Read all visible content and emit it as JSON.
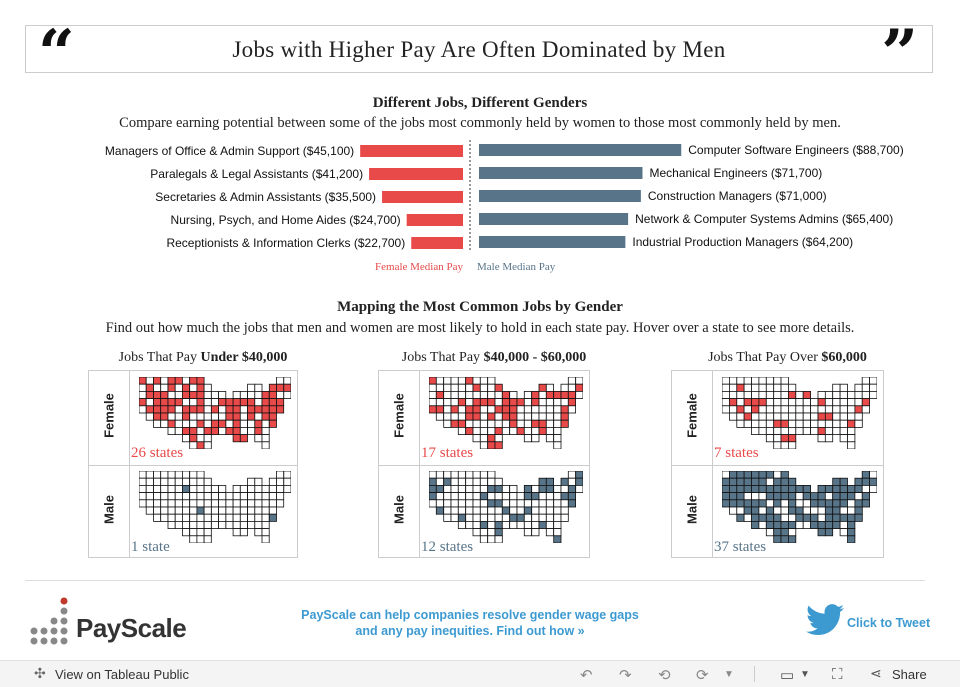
{
  "title": "Jobs with Higher Pay Are Often Dominated by Men",
  "section1": {
    "title": "Different Jobs, Different Genders",
    "subtitle": "Compare earning potential between some of the jobs most commonly held by women to those most commonly held by men."
  },
  "section2": {
    "title": "Mapping the Most Common Jobs by Gender",
    "subtitle": "Find out how much the jobs that men and women are most likely to hold in each state pay. Hover over a state to see more details."
  },
  "colors": {
    "female": "#e84a4a",
    "male": "#587489",
    "link": "#3d9ad1"
  },
  "chart_data": [
    {
      "type": "bar",
      "orientation": "horizontal",
      "title": "Different Jobs, Different Genders",
      "legend": [
        "Female Median Pay",
        "Male Median Pay"
      ],
      "series": [
        {
          "name": "Female Median Pay",
          "categories": [
            "Managers of Office & Admin Support",
            "Paralegals & Legal Assistants",
            "Secretaries & Admin Assistants",
            "Nursing, Psych, and Home Aides",
            "Receptionists & Information Clerks"
          ],
          "labels": [
            "Managers of Office & Admin Support ($45,100)",
            "Paralegals & Legal Assistants ($41,200)",
            "Secretaries & Admin Assistants ($35,500)",
            "Nursing, Psych, and Home Aides ($24,700)",
            "Receptionists & Information Clerks ($22,700)"
          ],
          "values": [
            45100,
            41200,
            35500,
            24700,
            22700
          ]
        },
        {
          "name": "Male Median Pay",
          "categories": [
            "Computer Software Engineers",
            "Mechanical Engineers",
            "Construction Managers",
            "Network & Computer Systems Admins",
            "Industrial Production Managers"
          ],
          "labels": [
            "Computer Software Engineers ($88,700)",
            "Mechanical Engineers ($71,700)",
            "Construction Managers ($71,000)",
            "Network & Computer Systems Admins ($65,400)",
            "Industrial Production Managers ($64,200)"
          ],
          "values": [
            88700,
            71700,
            71000,
            65400,
            64200
          ]
        }
      ]
    },
    {
      "type": "map-grid",
      "title": "Mapping the Most Common Jobs by Gender",
      "panels": [
        {
          "prefix": "Jobs That Pay ",
          "range": "Under $40,000",
          "female": {
            "count": 26,
            "label": "26 states"
          },
          "male": {
            "count": 1,
            "label": "1 state"
          }
        },
        {
          "prefix": "Jobs That Pay ",
          "range": "$40,000 - $60,000",
          "female": {
            "count": 17,
            "label": "17 states"
          },
          "male": {
            "count": 12,
            "label": "12 states"
          }
        },
        {
          "prefix": "Jobs That Pay Over ",
          "range": "$60,000",
          "female": {
            "count": 7,
            "label": "7 states"
          },
          "male": {
            "count": 37,
            "label": "37 states"
          }
        }
      ],
      "row_labels": {
        "female": "Female",
        "male": "Male"
      }
    }
  ],
  "footer": {
    "brand": "PayScale",
    "promo_line1": "PayScale can help companies resolve gender wage gaps",
    "promo_line2": "and any pay inequities. Find out how »",
    "tweet": "Click to Tweet"
  },
  "toolbar": {
    "view_label": "View on Tableau Public",
    "share_label": "Share",
    "icons": [
      "tableau-icon",
      "undo-icon",
      "redo-icon",
      "revert-icon",
      "refresh-icon",
      "device-icon",
      "fullscreen-icon",
      "share-icon"
    ]
  }
}
